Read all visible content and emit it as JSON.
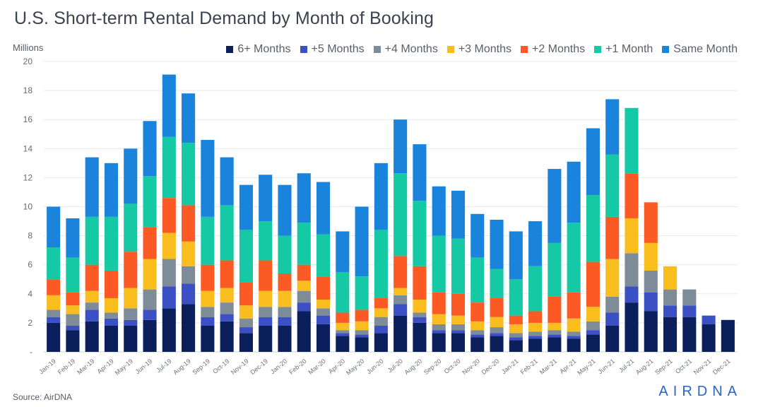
{
  "chart_data": {
    "type": "bar",
    "stacked": true,
    "title": "U.S. Short-term Rental Demand by Month of Booking",
    "ylabel": "Millions",
    "xlabel": "",
    "ylim": [
      0,
      20
    ],
    "yticks": [
      "-",
      "2",
      "4",
      "6",
      "8",
      "10",
      "12",
      "14",
      "16",
      "18",
      "20"
    ],
    "grid": true,
    "legend_position": "top-right",
    "categories": [
      "Jan-19",
      "Feb-19",
      "Mar-19",
      "Apr-19",
      "May-19",
      "Jun-19",
      "Jul-19",
      "Aug-19",
      "Sep-19",
      "Oct-19",
      "Nov-19",
      "Dec-19",
      "Jan-20",
      "Feb-20",
      "Mar-20",
      "Apr-20",
      "May-20",
      "Jun-20",
      "Jul-20",
      "Aug-20",
      "Sep-20",
      "Oct-20",
      "Nov-20",
      "Dec-20",
      "Jan-21",
      "Feb-21",
      "Mar-21",
      "Apr-21",
      "May-21",
      "Jun-21",
      "Jul-21",
      "Aug-21",
      "Sep-21",
      "Oct-21",
      "Nov-21",
      "Dec-21"
    ],
    "series": [
      {
        "name": "6+ Months",
        "color": "#0b1f5c",
        "values": [
          2.0,
          1.5,
          2.1,
          1.8,
          1.8,
          2.2,
          3.0,
          3.3,
          1.8,
          2.1,
          1.3,
          1.8,
          1.8,
          2.8,
          1.9,
          1.1,
          1.0,
          1.3,
          2.5,
          2.0,
          1.3,
          1.3,
          1.0,
          1.1,
          0.8,
          0.9,
          1.0,
          0.9,
          1.2,
          1.8,
          3.4,
          2.8,
          2.4,
          2.4,
          1.9,
          2.2
        ]
      },
      {
        "name": "+5 Months",
        "color": "#3a50c4",
        "values": [
          0.4,
          0.3,
          0.8,
          0.5,
          0.4,
          0.7,
          1.5,
          1.4,
          0.6,
          0.5,
          0.4,
          0.6,
          0.6,
          0.6,
          0.6,
          0.2,
          0.2,
          0.5,
          0.8,
          0.4,
          0.2,
          0.2,
          0.2,
          0.2,
          0.2,
          0.2,
          0.2,
          0.2,
          0.3,
          0.9,
          1.1,
          1.3,
          0.8,
          0.8,
          0.6,
          0
        ]
      },
      {
        "name": "+4 Months",
        "color": "#7d8c96",
        "values": [
          0.5,
          0.8,
          0.5,
          0.4,
          0.8,
          1.4,
          1.9,
          1.2,
          0.7,
          0.8,
          0.6,
          0.7,
          0.7,
          0.8,
          0.5,
          0.2,
          0.3,
          0.6,
          0.6,
          0.3,
          0.4,
          0.4,
          0.3,
          0.4,
          0.3,
          0.3,
          0.3,
          0.3,
          0.6,
          1.1,
          2.3,
          1.5,
          1.1,
          1.1,
          0,
          0
        ]
      },
      {
        "name": "+3 Months",
        "color": "#f9bd1e",
        "values": [
          1.0,
          0.6,
          0.8,
          1.0,
          1.4,
          2.1,
          1.8,
          1.7,
          1.1,
          1.0,
          0.9,
          1.1,
          1.1,
          0.7,
          0.6,
          0.5,
          0.6,
          0.6,
          0.5,
          0.9,
          0.7,
          0.6,
          0.6,
          0.7,
          0.6,
          0.6,
          0.5,
          0.9,
          1.0,
          2.6,
          2.4,
          1.9,
          1.6,
          0,
          0,
          0
        ]
      },
      {
        "name": "+2 Months",
        "color": "#fc5a24",
        "values": [
          1.1,
          0.9,
          1.8,
          1.9,
          2.5,
          2.2,
          2.4,
          2.5,
          1.8,
          1.9,
          1.6,
          2.1,
          1.2,
          1.1,
          1.6,
          0.7,
          0.8,
          0.7,
          2.2,
          2.3,
          1.5,
          1.5,
          1.3,
          1.3,
          0.6,
          0.8,
          1.8,
          1.8,
          3.1,
          2.9,
          3.1,
          2.8,
          0,
          0,
          0,
          0
        ]
      },
      {
        "name": "+1 Month",
        "color": "#14c9a3",
        "values": [
          2.2,
          2.4,
          3.3,
          3.7,
          3.3,
          3.5,
          4.2,
          4.3,
          3.3,
          3.8,
          3.6,
          2.7,
          2.6,
          2.9,
          2.9,
          2.8,
          2.3,
          4.7,
          5.7,
          4.5,
          3.9,
          3.8,
          3.1,
          2.0,
          2.5,
          3.1,
          3.7,
          4.8,
          4.6,
          4.3,
          4.5,
          0,
          0,
          0,
          0,
          0
        ]
      },
      {
        "name": "Same Month",
        "color": "#1a84dc",
        "values": [
          2.8,
          2.7,
          4.1,
          3.7,
          3.8,
          3.8,
          4.3,
          3.4,
          5.3,
          3.3,
          3.1,
          3.2,
          3.5,
          3.4,
          3.6,
          2.8,
          4.8,
          4.6,
          3.7,
          3.9,
          3.4,
          3.3,
          3.0,
          3.4,
          3.3,
          3.1,
          5.1,
          4.2,
          4.6,
          3.8,
          0,
          0,
          0,
          0,
          0,
          0
        ]
      }
    ]
  },
  "page": {
    "title": "U.S. Short-term Rental Demand by Month of Booking",
    "unit_label": "Millions",
    "source": "Source: AirDNA",
    "logo": "AIRDNA"
  }
}
